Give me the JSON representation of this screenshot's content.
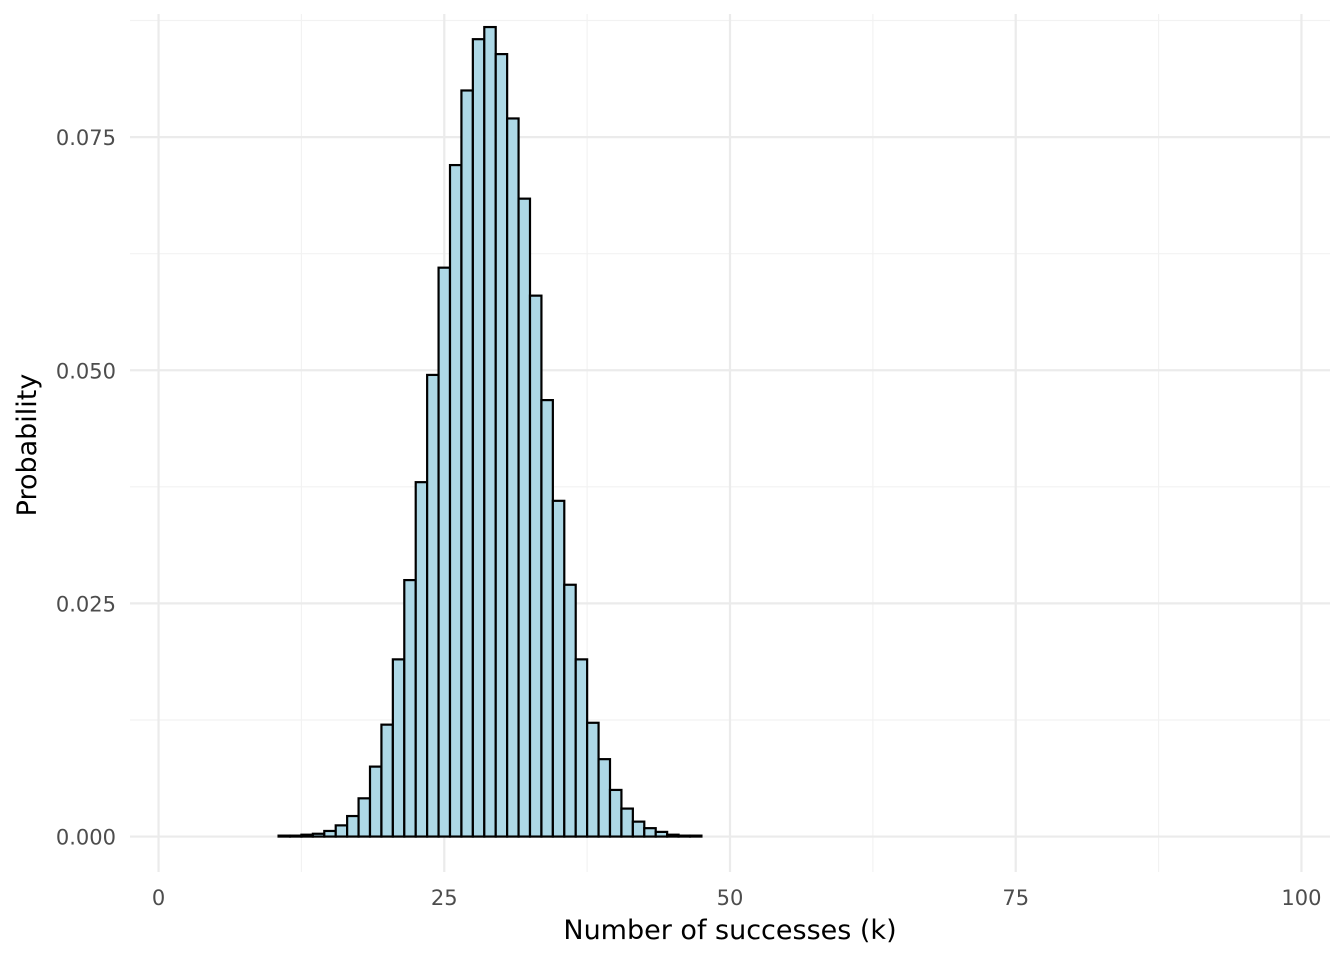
{
  "chart_data": {
    "type": "bar",
    "xlabel": "Number of successes (k)",
    "ylabel": "Probability",
    "xlim": [
      -2.5,
      102.5
    ],
    "ylim": [
      -0.0038,
      0.0882
    ],
    "x_ticks": [
      0,
      25,
      50,
      75,
      100
    ],
    "x_tick_labels": [
      "0",
      "25",
      "50",
      "75",
      "100"
    ],
    "y_ticks": [
      0.0,
      0.025,
      0.05,
      0.075
    ],
    "y_tick_labels": [
      "0.000",
      "0.025",
      "0.050",
      "0.075"
    ],
    "grid": true,
    "bar_fill": "#add8e6",
    "bar_outline": "#000000",
    "x": [
      0,
      1,
      2,
      3,
      4,
      5,
      6,
      7,
      8,
      9,
      10,
      11,
      12,
      13,
      14,
      15,
      16,
      17,
      18,
      19,
      20,
      21,
      22,
      23,
      24,
      25,
      26,
      27,
      28,
      29,
      30,
      31,
      32,
      33,
      34,
      35,
      36,
      37,
      38,
      39,
      40,
      41,
      42,
      43,
      44,
      45,
      46,
      47,
      48,
      49,
      50,
      51,
      52,
      53,
      54,
      55,
      56,
      57,
      58,
      59,
      60,
      61,
      62,
      63,
      64,
      65,
      66,
      67,
      68,
      69,
      70,
      71,
      72,
      73,
      74,
      75,
      76,
      77,
      78,
      79,
      80,
      81,
      82,
      83,
      84,
      85,
      86,
      87,
      88,
      89,
      90,
      91,
      92,
      93,
      94,
      95,
      96,
      97,
      98,
      99,
      100
    ],
    "values": [
      0,
      0,
      0,
      0,
      0,
      0,
      0,
      0,
      0,
      0,
      0.0,
      0.0001,
      0.0001,
      0.0002,
      0.0003,
      0.0006,
      0.0012,
      0.0022,
      0.0041,
      0.0075,
      0.012,
      0.019,
      0.0275,
      0.038,
      0.0495,
      0.061,
      0.072,
      0.08,
      0.0855,
      0.0868,
      0.0839,
      0.077,
      0.0684,
      0.058,
      0.0468,
      0.036,
      0.027,
      0.019,
      0.0122,
      0.0083,
      0.005,
      0.003,
      0.0016,
      0.0009,
      0.0005,
      0.0002,
      0.0001,
      0.0001,
      0,
      0,
      0,
      0,
      0,
      0,
      0,
      0,
      0,
      0,
      0,
      0,
      0,
      0,
      0,
      0,
      0,
      0,
      0,
      0,
      0,
      0,
      0,
      0,
      0,
      0,
      0,
      0,
      0,
      0,
      0,
      0,
      0,
      0,
      0,
      0,
      0,
      0,
      0,
      0,
      0,
      0,
      0,
      0,
      0,
      0,
      0,
      0,
      0,
      0,
      0,
      0,
      0
    ]
  }
}
